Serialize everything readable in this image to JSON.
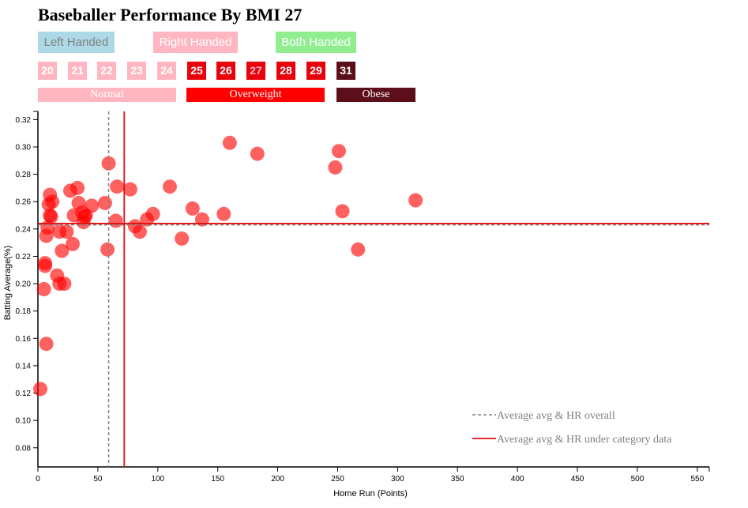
{
  "title": "Baseballer Performance By BMI 27",
  "handedness": [
    {
      "label": "Left Handed",
      "bg": "#add8e6",
      "color": "#808080"
    },
    {
      "label": "Right Handed",
      "bg": "#ffb6c1",
      "color": "#ffffff"
    },
    {
      "label": "Both Handed",
      "bg": "#90ee90",
      "color": "#ffffff"
    }
  ],
  "bmi_buttons": [
    {
      "label": "20",
      "bg": "#ffb6c1",
      "color": "#ffffff"
    },
    {
      "label": "21",
      "bg": "#ffb6c1",
      "color": "#ffffff"
    },
    {
      "label": "22",
      "bg": "#ffb6c1",
      "color": "#ffffff"
    },
    {
      "label": "23",
      "bg": "#ffb6c1",
      "color": "#ffffff"
    },
    {
      "label": "24",
      "bg": "#ffb6c1",
      "color": "#ffffff"
    },
    {
      "label": "25",
      "bg": "#e8000b",
      "color": "#ffffff"
    },
    {
      "label": "26",
      "bg": "#e8000b",
      "color": "#ffffff"
    },
    {
      "label": "27",
      "bg": "#e8000b",
      "color": "#ffb6c1"
    },
    {
      "label": "28",
      "bg": "#e8000b",
      "color": "#ffffff"
    },
    {
      "label": "29",
      "bg": "#e8000b",
      "color": "#ffffff"
    },
    {
      "label": "31",
      "bg": "#5c0f1a",
      "color": "#ffffff"
    }
  ],
  "categories": [
    {
      "label": "Normal",
      "bg": "#ffb6c1"
    },
    {
      "label": "Overweight",
      "bg": "#ff0000"
    },
    {
      "label": "Obese",
      "bg": "#5c0f1a"
    }
  ],
  "colors": {
    "points": "#ff0000",
    "overall_line": "#808080",
    "category_line": "#e01010",
    "legend_text": "#808080"
  },
  "chart_data": {
    "type": "scatter",
    "xlabel": "Home Run (Points)",
    "ylabel": "Batting Average(%)",
    "xlim": [
      0,
      560
    ],
    "ylim": [
      0.066,
      0.326
    ],
    "xticks": [
      0,
      50,
      100,
      150,
      200,
      250,
      300,
      350,
      400,
      450,
      500,
      550
    ],
    "yticks": [
      0.08,
      0.1,
      0.12,
      0.14,
      0.16,
      0.18,
      0.2,
      0.22,
      0.24,
      0.26,
      0.28,
      0.3,
      0.32
    ],
    "grid": false,
    "legend_position": "bottom-right",
    "legend": [
      {
        "label": "Average avg & HR overall",
        "style": "dashed"
      },
      {
        "label": "Average avg & HR under category data",
        "style": "solid"
      }
    ],
    "overall_avg": {
      "hr": 59,
      "avg": 0.243
    },
    "category_avg": {
      "hr": 72,
      "avg": 0.244
    },
    "points": [
      {
        "x": 2,
        "y": 0.123
      },
      {
        "x": 5,
        "y": 0.196
      },
      {
        "x": 6,
        "y": 0.215
      },
      {
        "x": 6,
        "y": 0.213
      },
      {
        "x": 7,
        "y": 0.156
      },
      {
        "x": 7,
        "y": 0.235
      },
      {
        "x": 8,
        "y": 0.241
      },
      {
        "x": 9,
        "y": 0.258
      },
      {
        "x": 10,
        "y": 0.265
      },
      {
        "x": 10,
        "y": 0.25
      },
      {
        "x": 11,
        "y": 0.249
      },
      {
        "x": 12,
        "y": 0.26
      },
      {
        "x": 16,
        "y": 0.206
      },
      {
        "x": 18,
        "y": 0.2
      },
      {
        "x": 18,
        "y": 0.238
      },
      {
        "x": 20,
        "y": 0.224
      },
      {
        "x": 22,
        "y": 0.2
      },
      {
        "x": 24,
        "y": 0.238
      },
      {
        "x": 27,
        "y": 0.268
      },
      {
        "x": 29,
        "y": 0.229
      },
      {
        "x": 30,
        "y": 0.25
      },
      {
        "x": 33,
        "y": 0.27
      },
      {
        "x": 34,
        "y": 0.259
      },
      {
        "x": 37,
        "y": 0.252
      },
      {
        "x": 38,
        "y": 0.245
      },
      {
        "x": 39,
        "y": 0.249
      },
      {
        "x": 40,
        "y": 0.25
      },
      {
        "x": 45,
        "y": 0.257
      },
      {
        "x": 56,
        "y": 0.259
      },
      {
        "x": 58,
        "y": 0.225
      },
      {
        "x": 59,
        "y": 0.288
      },
      {
        "x": 65,
        "y": 0.246
      },
      {
        "x": 66,
        "y": 0.271
      },
      {
        "x": 77,
        "y": 0.269
      },
      {
        "x": 81,
        "y": 0.242
      },
      {
        "x": 85,
        "y": 0.238
      },
      {
        "x": 91,
        "y": 0.247
      },
      {
        "x": 96,
        "y": 0.251
      },
      {
        "x": 110,
        "y": 0.271
      },
      {
        "x": 120,
        "y": 0.233
      },
      {
        "x": 129,
        "y": 0.255
      },
      {
        "x": 137,
        "y": 0.247
      },
      {
        "x": 155,
        "y": 0.251
      },
      {
        "x": 160,
        "y": 0.303
      },
      {
        "x": 183,
        "y": 0.295
      },
      {
        "x": 248,
        "y": 0.285
      },
      {
        "x": 251,
        "y": 0.297
      },
      {
        "x": 254,
        "y": 0.253
      },
      {
        "x": 267,
        "y": 0.225
      },
      {
        "x": 315,
        "y": 0.261
      }
    ]
  }
}
